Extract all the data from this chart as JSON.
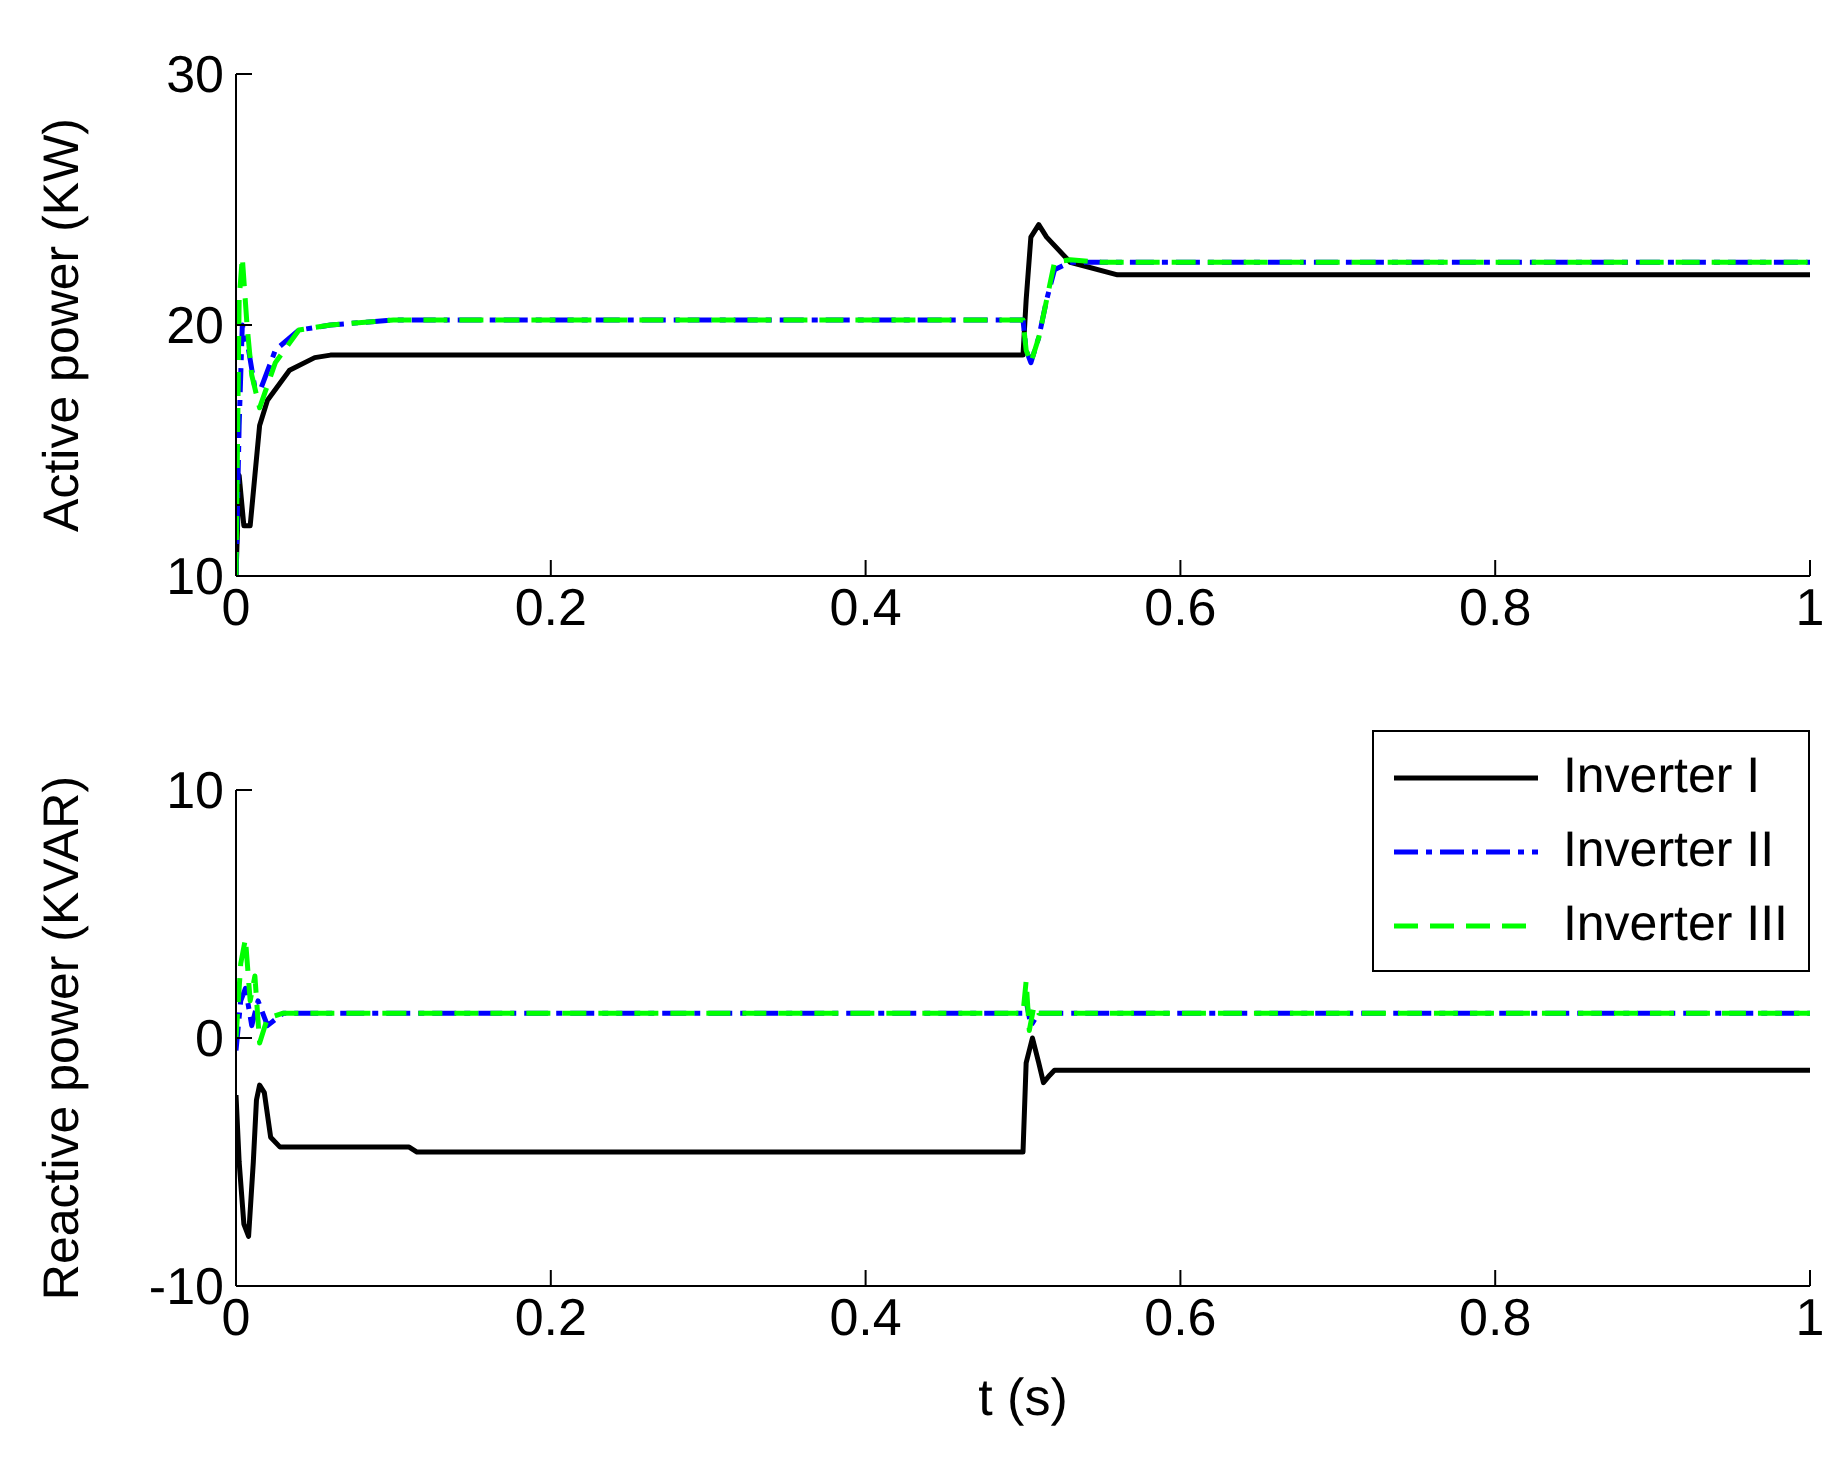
{
  "chart_data": [
    {
      "type": "line",
      "ylabel": "Active power (KW)",
      "xlim": [
        0,
        1
      ],
      "xticks": [
        0,
        0.2,
        0.4,
        0.6,
        0.8,
        1
      ],
      "ylim": [
        10,
        30
      ],
      "yticks": [
        10,
        20,
        30
      ],
      "grid": false,
      "legend": false,
      "series": [
        {
          "color": "#000000",
          "line_style": "solid",
          "x": [
            0,
            0.002,
            0.005,
            0.009,
            0.012,
            0.015,
            0.02,
            0.034,
            0.05,
            0.06,
            0.5,
            0.502,
            0.505,
            0.51,
            0.515,
            0.53,
            0.56,
            1
          ],
          "values": [
            10,
            14,
            12,
            12,
            14,
            16,
            17,
            18.2,
            18.7,
            18.8,
            18.8,
            21,
            23.5,
            24,
            23.5,
            22.5,
            22,
            22
          ]
        },
        {
          "color": "#0000ff",
          "line_style": "dashdot",
          "x": [
            0,
            0.002,
            0.004,
            0.008,
            0.012,
            0.016,
            0.025,
            0.04,
            0.06,
            0.1,
            0.5,
            0.502,
            0.505,
            0.51,
            0.515,
            0.52,
            0.53,
            0.55,
            1
          ],
          "values": [
            10,
            16,
            20,
            19,
            17.5,
            17.5,
            19,
            19.8,
            20,
            20.2,
            20.2,
            19,
            18.5,
            19.5,
            21,
            22.2,
            22.5,
            22.5,
            22.5
          ]
        },
        {
          "color": "#00ff00",
          "line_style": "dashed",
          "x": [
            0,
            0.002,
            0.004,
            0.007,
            0.01,
            0.015,
            0.025,
            0.04,
            0.06,
            0.1,
            0.5,
            0.502,
            0.505,
            0.51,
            0.515,
            0.52,
            0.53,
            0.55,
            1
          ],
          "values": [
            10,
            21,
            22.7,
            20,
            18,
            16.7,
            18.5,
            19.8,
            20,
            20.2,
            20.2,
            19,
            18.5,
            19.5,
            21,
            22.5,
            22.6,
            22.5,
            22.5
          ]
        }
      ]
    },
    {
      "type": "line",
      "xlabel": "t (s)",
      "ylabel": "Reactive power (KVAR)",
      "xlim": [
        0,
        1
      ],
      "xticks": [
        0,
        0.2,
        0.4,
        0.6,
        0.8,
        1
      ],
      "ylim": [
        -10,
        10
      ],
      "yticks": [
        -10,
        0,
        10
      ],
      "grid": false,
      "legend": "top right",
      "series": [
        {
          "name": "Inverter I",
          "color": "#000000",
          "line_style": "solid",
          "x": [
            0,
            0.002,
            0.005,
            0.008,
            0.011,
            0.013,
            0.015,
            0.018,
            0.022,
            0.028,
            0.11,
            0.115,
            0.5,
            0.502,
            0.506,
            0.51,
            0.513,
            0.517,
            0.52,
            1
          ],
          "values": [
            -2.3,
            -5,
            -7.5,
            -8,
            -5,
            -2.5,
            -1.9,
            -2.2,
            -4,
            -4.4,
            -4.4,
            -4.6,
            -4.6,
            -1,
            0,
            -1,
            -1.8,
            -1.5,
            -1.3,
            -1.3
          ]
        },
        {
          "name": "Inverter II",
          "color": "#0000ff",
          "line_style": "dashdot",
          "x": [
            0,
            0.003,
            0.006,
            0.01,
            0.014,
            0.02,
            0.03,
            0.5,
            0.502,
            0.505,
            0.51,
            1
          ],
          "values": [
            -0.5,
            1.5,
            2,
            0.5,
            1.5,
            0.5,
            1,
            1,
            1.5,
            0.5,
            1,
            1
          ]
        },
        {
          "name": "Inverter III",
          "color": "#00ff00",
          "line_style": "dashed",
          "x": [
            0,
            0.003,
            0.006,
            0.009,
            0.012,
            0.015,
            0.02,
            0.03,
            0.5,
            0.502,
            0.504,
            0.507,
            0.51,
            1
          ],
          "values": [
            0,
            3,
            4,
            1.5,
            2.5,
            -0.2,
            0.8,
            1,
            1,
            2.3,
            0.3,
            1.3,
            1,
            1
          ]
        }
      ]
    }
  ]
}
